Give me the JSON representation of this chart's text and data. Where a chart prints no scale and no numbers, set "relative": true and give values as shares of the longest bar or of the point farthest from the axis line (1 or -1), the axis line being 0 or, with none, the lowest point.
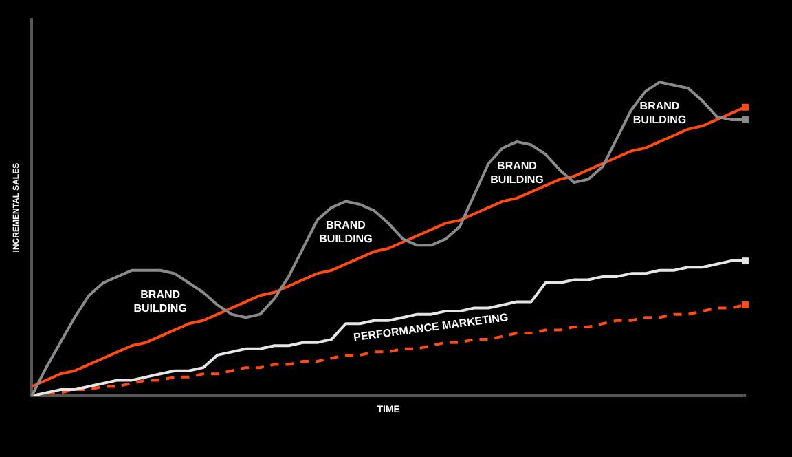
{
  "chart_data": {
    "type": "line",
    "relative": true,
    "xlabel": "TIME",
    "ylabel": "INCREMENTAL SALES",
    "legend": false,
    "grid": false,
    "tick_labels": false,
    "line_style": "solid",
    "categories": [
      null,
      null,
      null,
      null,
      null,
      null,
      null,
      null,
      null,
      null,
      null,
      null,
      null,
      null,
      null,
      null,
      null,
      null,
      null,
      null,
      null,
      null,
      null,
      null,
      null,
      null,
      null,
      null,
      null,
      null,
      null,
      null,
      null,
      null,
      null,
      null,
      null,
      null,
      null,
      null,
      null,
      null,
      null,
      null,
      null,
      null,
      null,
      null,
      null,
      null,
      null
    ],
    "series": [
      {
        "color": "#ff4a14",
        "line_style": "dashed",
        "values": [
          0,
          0.01,
          0.01,
          0.02,
          0.02,
          0.03,
          0.03,
          0.04,
          0.05,
          0.05,
          0.06,
          0.06,
          0.07,
          0.07,
          0.08,
          0.09,
          0.09,
          0.1,
          0.1,
          0.11,
          0.11,
          0.12,
          0.13,
          0.13,
          0.14,
          0.14,
          0.15,
          0.15,
          0.16,
          0.17,
          0.17,
          0.18,
          0.18,
          0.19,
          0.2,
          0.2,
          0.21,
          0.21,
          0.22,
          0.22,
          0.23,
          0.24,
          0.24,
          0.25,
          0.25,
          0.26,
          0.26,
          0.27,
          0.28,
          0.28,
          0.29
        ]
      },
      {
        "name": "PERFORMANCE MARKETING",
        "color": "#e6e6e6",
        "values": [
          0,
          0.01,
          0.02,
          0.02,
          0.03,
          0.04,
          0.05,
          0.05,
          0.06,
          0.07,
          0.08,
          0.08,
          0.09,
          0.13,
          0.14,
          0.15,
          0.15,
          0.16,
          0.16,
          0.17,
          0.17,
          0.18,
          0.23,
          0.23,
          0.24,
          0.24,
          0.25,
          0.26,
          0.26,
          0.27,
          0.27,
          0.28,
          0.28,
          0.29,
          0.3,
          0.3,
          0.36,
          0.36,
          0.37,
          0.37,
          0.38,
          0.38,
          0.39,
          0.39,
          0.4,
          0.4,
          0.41,
          0.41,
          0.42,
          0.43,
          0.43
        ]
      },
      {
        "color": "#ff4a14",
        "values": [
          0.03,
          0.05,
          0.07,
          0.08,
          0.1,
          0.12,
          0.14,
          0.16,
          0.17,
          0.19,
          0.21,
          0.23,
          0.24,
          0.26,
          0.28,
          0.3,
          0.32,
          0.33,
          0.35,
          0.37,
          0.39,
          0.4,
          0.42,
          0.44,
          0.46,
          0.47,
          0.49,
          0.51,
          0.53,
          0.55,
          0.56,
          0.58,
          0.6,
          0.62,
          0.63,
          0.65,
          0.67,
          0.69,
          0.7,
          0.72,
          0.74,
          0.76,
          0.78,
          0.79,
          0.81,
          0.83,
          0.85,
          0.86,
          0.88,
          0.9,
          0.92
        ]
      },
      {
        "name": "BRAND BUILDING",
        "color": "#8a8a8a",
        "values": [
          0,
          0.09,
          0.17,
          0.25,
          0.32,
          0.36,
          0.38,
          0.4,
          0.4,
          0.4,
          0.39,
          0.36,
          0.33,
          0.29,
          0.26,
          0.25,
          0.26,
          0.31,
          0.38,
          0.47,
          0.56,
          0.6,
          0.62,
          0.61,
          0.59,
          0.55,
          0.5,
          0.48,
          0.48,
          0.5,
          0.54,
          0.64,
          0.74,
          0.79,
          0.81,
          0.8,
          0.77,
          0.72,
          0.68,
          0.69,
          0.73,
          0.82,
          0.91,
          0.97,
          1.0,
          0.99,
          0.98,
          0.94,
          0.89,
          0.88,
          0.88
        ]
      }
    ]
  }
}
